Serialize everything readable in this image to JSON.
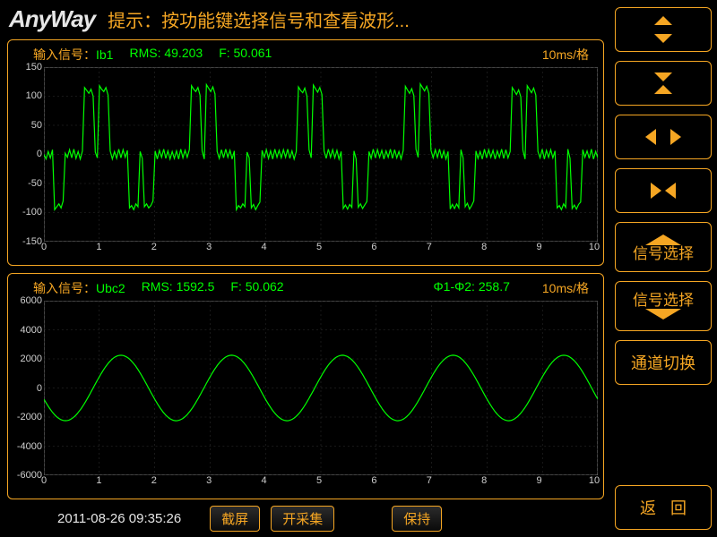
{
  "header": {
    "logo": "AnyWay",
    "hint": "提示：按功能键选择信号和查看波形..."
  },
  "chart1": {
    "type": "line",
    "signal_label_prefix": "输入信号：",
    "signal_name": "Ib1",
    "rms_label": "RMS: 49.203",
    "f_label": "F: 50.061",
    "time_div": "10ms/格",
    "ylim": [
      -150,
      150
    ],
    "yticks": [
      -150,
      -100,
      -50,
      0,
      50,
      100,
      150
    ],
    "xlim": [
      0,
      10
    ],
    "xticks": [
      0,
      1,
      2,
      3,
      4,
      5,
      6,
      7,
      8,
      9,
      10
    ],
    "line_color": "#00ff00",
    "grid_color": "#333333",
    "background_color": "#000000",
    "data": [
      0,
      -8,
      5,
      -6,
      8,
      -95,
      -90,
      -85,
      -92,
      -80,
      2,
      -5,
      8,
      -6,
      9,
      -7,
      5,
      -8,
      6,
      115,
      110,
      105,
      112,
      100,
      4,
      -6,
      118,
      112,
      108,
      115,
      102,
      6,
      -8,
      5,
      -7,
      9,
      -6,
      8,
      -5,
      7,
      -92,
      -88,
      -95,
      -85,
      -90,
      5,
      -7,
      -90,
      -85,
      -92,
      -88,
      -80,
      6,
      -8,
      7,
      -5,
      9,
      -7,
      6,
      -8,
      5,
      -7,
      6,
      -8,
      9,
      -6,
      7,
      -5,
      8,
      118,
      112,
      108,
      115,
      102,
      6,
      -8,
      120,
      114,
      108,
      116,
      104,
      5,
      -7,
      8,
      -6,
      9,
      -5,
      7,
      -8,
      6,
      -95,
      -88,
      -92,
      -85,
      -90,
      4,
      -6,
      -92,
      -86,
      -95,
      -88,
      -82,
      7,
      -5,
      8,
      -7,
      6,
      -8,
      9,
      -5,
      7,
      -6,
      8,
      -5,
      9,
      -7,
      6,
      -8,
      5,
      116,
      110,
      106,
      114,
      100,
      8,
      -6,
      119,
      113,
      107,
      115,
      103,
      6,
      -7,
      9,
      -5,
      8,
      -6,
      7,
      -8,
      5,
      -93,
      -87,
      -94,
      -86,
      -91,
      6,
      -8,
      -91,
      -85,
      -93,
      -87,
      -81,
      5,
      -7,
      9,
      -6,
      8,
      -5,
      7,
      -8,
      6,
      -5,
      9,
      -7,
      8,
      -6,
      5,
      -8,
      7,
      117,
      111,
      105,
      113,
      101,
      9,
      -5,
      121,
      115,
      109,
      117,
      105,
      7,
      -6,
      8,
      -5,
      9,
      -7,
      6,
      -8,
      5,
      -94,
      -86,
      -93,
      -85,
      -92,
      8,
      -6,
      -90,
      -84,
      -94,
      -88,
      -80,
      6,
      -7,
      5,
      -8,
      9,
      -6,
      8,
      -5,
      7,
      -8,
      6,
      -5,
      9,
      -7,
      8,
      -6,
      5,
      115,
      109,
      103,
      111,
      99,
      7,
      -8,
      118,
      112,
      106,
      114,
      102,
      5,
      -6,
      9,
      -8,
      7,
      -5,
      8,
      -6,
      6,
      -92,
      -88,
      -95,
      -85,
      -91,
      9,
      -7,
      -93,
      -87,
      -94,
      -86,
      -82,
      8,
      -5,
      6,
      -7,
      9,
      -8,
      5,
      -6
    ]
  },
  "chart2": {
    "type": "line",
    "signal_label_prefix": "输入信号：",
    "signal_name": "Ubc2",
    "rms_label": "RMS: 1592.5",
    "f_label": "F: 50.062",
    "phi_label": "Φ1-Φ2: 258.7",
    "time_div": "10ms/格",
    "ylim": [
      -6000,
      6000
    ],
    "yticks": [
      -6000,
      -4000,
      -2000,
      0,
      2000,
      4000,
      6000
    ],
    "xlim": [
      0,
      10
    ],
    "xticks": [
      0,
      1,
      2,
      3,
      4,
      5,
      6,
      7,
      8,
      9,
      10
    ],
    "line_color": "#00ff00",
    "grid_color": "#333333",
    "background_color": "#000000",
    "amplitude": 2250,
    "cycles": 5,
    "phase_deg": 200
  },
  "footer": {
    "timestamp": "2011-08-26 09:35:26",
    "screenshot": "截屏",
    "start_capture": "开采集",
    "hold": "保持"
  },
  "side": {
    "signal_select": "信号选择",
    "channel_switch": "通道切换",
    "back": "返回"
  },
  "colors": {
    "accent": "#f5a623",
    "signal": "#00ff00",
    "bg": "#000000",
    "text_light": "#e6e6e6"
  }
}
